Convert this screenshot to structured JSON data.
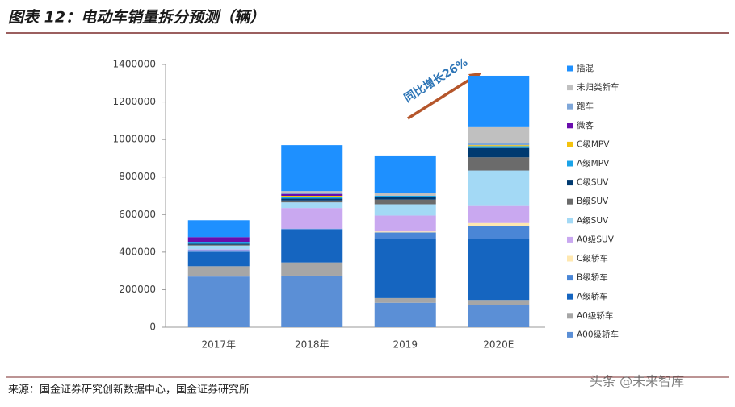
{
  "chart_data": {
    "type": "stacked-bar",
    "title": "图表 12：电动车销量拆分预测（辆）",
    "source": "来源：国金证券研究创新数据中心，国金证券研究所",
    "watermark": "头条 @未来智库",
    "annotation": "同比增长26%",
    "categories": [
      "2017年",
      "2018年",
      "2019",
      "2020E"
    ],
    "ylim": [
      0,
      1400000
    ],
    "yticks": [
      0,
      200000,
      400000,
      600000,
      800000,
      1000000,
      1200000,
      1400000
    ],
    "series": [
      {
        "name": "A00级轿车",
        "color": "#5b8fd6",
        "values": [
          270000,
          275000,
          130000,
          120000
        ]
      },
      {
        "name": "A0级轿车",
        "color": "#a6a6a6",
        "values": [
          55000,
          70000,
          25000,
          25000
        ]
      },
      {
        "name": "A级轿车",
        "color": "#1565c0",
        "values": [
          75000,
          175000,
          315000,
          325000
        ]
      },
      {
        "name": "B级轿车",
        "color": "#4a86d6",
        "values": [
          10000,
          5000,
          35000,
          70000
        ]
      },
      {
        "name": "C级轿车",
        "color": "#ffe8b0",
        "values": [
          0,
          0,
          5000,
          15000
        ]
      },
      {
        "name": "A0级SUV",
        "color": "#c9a8f0",
        "values": [
          5000,
          110000,
          85000,
          95000
        ]
      },
      {
        "name": "A级SUV",
        "color": "#a3d9f5",
        "values": [
          20000,
          30000,
          60000,
          185000
        ]
      },
      {
        "name": "B级SUV",
        "color": "#6b6b6b",
        "values": [
          5000,
          10000,
          25000,
          70000
        ]
      },
      {
        "name": "C级SUV",
        "color": "#003a70",
        "values": [
          5000,
          10000,
          15000,
          50000
        ]
      },
      {
        "name": "A级MPV",
        "color": "#1aa3e8",
        "values": [
          10000,
          10000,
          5000,
          10000
        ]
      },
      {
        "name": "C级MPV",
        "color": "#f4c20d",
        "values": [
          0,
          5000,
          0,
          5000
        ]
      },
      {
        "name": "微客",
        "color": "#6a0dad",
        "values": [
          25000,
          10000,
          0,
          0
        ]
      },
      {
        "name": "跑车",
        "color": "#7fa7d9",
        "values": [
          0,
          5000,
          0,
          10000
        ]
      },
      {
        "name": "未归类新车",
        "color": "#c0c0c0",
        "values": [
          0,
          10000,
          15000,
          90000
        ]
      },
      {
        "name": "插混",
        "color": "#1e90ff",
        "values": [
          90000,
          245000,
          200000,
          270000
        ]
      }
    ]
  }
}
